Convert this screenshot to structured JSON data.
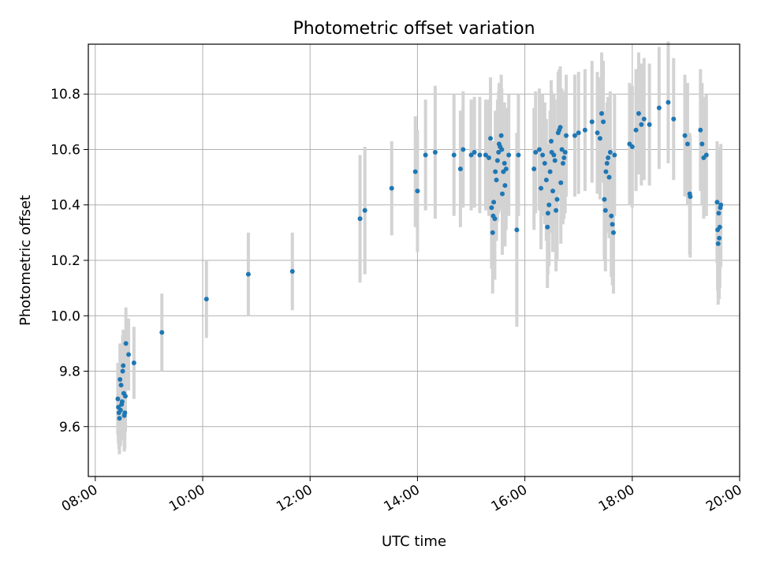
{
  "chart_data": {
    "type": "scatter",
    "title": "Photometric offset variation",
    "xlabel": "UTC time",
    "ylabel": "Photometric offset",
    "x_unit": "hours",
    "xlim": [
      7.87,
      20.0
    ],
    "ylim": [
      9.42,
      10.98
    ],
    "x_ticks": [
      {
        "value": 8,
        "label": "08:00"
      },
      {
        "value": 10,
        "label": "10:00"
      },
      {
        "value": 12,
        "label": "12:00"
      },
      {
        "value": 14,
        "label": "14:00"
      },
      {
        "value": 16,
        "label": "16:00"
      },
      {
        "value": 18,
        "label": "18:00"
      },
      {
        "value": 20,
        "label": "20:00"
      }
    ],
    "y_ticks": [
      {
        "value": 9.6,
        "label": "9.6"
      },
      {
        "value": 9.8,
        "label": "9.8"
      },
      {
        "value": 10.0,
        "label": "10.0"
      },
      {
        "value": 10.2,
        "label": "10.2"
      },
      {
        "value": 10.4,
        "label": "10.4"
      },
      {
        "value": 10.6,
        "label": "10.6"
      },
      {
        "value": 10.8,
        "label": "10.8"
      }
    ],
    "grid": true,
    "marker_color": "#1f77b4",
    "errorbar_color": "#d3d3d3",
    "series": [
      {
        "points": [
          {
            "x": 8.42,
            "y": 9.7,
            "err": 0.13
          },
          {
            "x": 8.43,
            "y": 9.67,
            "err": 0.13
          },
          {
            "x": 8.44,
            "y": 9.65,
            "err": 0.13
          },
          {
            "x": 8.45,
            "y": 9.63,
            "err": 0.13
          },
          {
            "x": 8.46,
            "y": 9.77,
            "err": 0.13
          },
          {
            "x": 8.47,
            "y": 9.66,
            "err": 0.13
          },
          {
            "x": 8.48,
            "y": 9.75,
            "err": 0.13
          },
          {
            "x": 8.49,
            "y": 9.68,
            "err": 0.13
          },
          {
            "x": 8.5,
            "y": 9.69,
            "err": 0.13
          },
          {
            "x": 8.51,
            "y": 9.8,
            "err": 0.13
          },
          {
            "x": 8.52,
            "y": 9.82,
            "err": 0.13
          },
          {
            "x": 8.53,
            "y": 9.72,
            "err": 0.13
          },
          {
            "x": 8.54,
            "y": 9.64,
            "err": 0.13
          },
          {
            "x": 8.55,
            "y": 9.65,
            "err": 0.13
          },
          {
            "x": 8.56,
            "y": 9.71,
            "err": 0.13
          },
          {
            "x": 8.57,
            "y": 9.9,
            "err": 0.13
          },
          {
            "x": 8.62,
            "y": 9.86,
            "err": 0.13
          },
          {
            "x": 8.72,
            "y": 9.83,
            "err": 0.13
          },
          {
            "x": 9.24,
            "y": 9.94,
            "err": 0.14
          },
          {
            "x": 10.07,
            "y": 10.06,
            "err": 0.14
          },
          {
            "x": 10.85,
            "y": 10.15,
            "err": 0.15
          },
          {
            "x": 11.67,
            "y": 10.16,
            "err": 0.14
          },
          {
            "x": 12.93,
            "y": 10.35,
            "err": 0.23
          },
          {
            "x": 13.02,
            "y": 10.38,
            "err": 0.23
          },
          {
            "x": 13.52,
            "y": 10.46,
            "err": 0.17
          },
          {
            "x": 13.96,
            "y": 10.52,
            "err": 0.2
          },
          {
            "x": 14.0,
            "y": 10.45,
            "err": 0.22
          },
          {
            "x": 14.15,
            "y": 10.58,
            "err": 0.2
          },
          {
            "x": 14.33,
            "y": 10.59,
            "err": 0.24
          },
          {
            "x": 14.68,
            "y": 10.58,
            "err": 0.22
          },
          {
            "x": 14.8,
            "y": 10.53,
            "err": 0.21
          },
          {
            "x": 14.85,
            "y": 10.6,
            "err": 0.21
          },
          {
            "x": 15.0,
            "y": 10.58,
            "err": 0.2
          },
          {
            "x": 15.06,
            "y": 10.59,
            "err": 0.2
          },
          {
            "x": 15.16,
            "y": 10.58,
            "err": 0.21
          },
          {
            "x": 15.27,
            "y": 10.58,
            "err": 0.2
          },
          {
            "x": 15.33,
            "y": 10.57,
            "err": 0.21
          },
          {
            "x": 15.36,
            "y": 10.64,
            "err": 0.22
          },
          {
            "x": 15.38,
            "y": 10.39,
            "err": 0.22
          },
          {
            "x": 15.4,
            "y": 10.3,
            "err": 0.22
          },
          {
            "x": 15.41,
            "y": 10.36,
            "err": 0.22
          },
          {
            "x": 15.42,
            "y": 10.41,
            "err": 0.22
          },
          {
            "x": 15.44,
            "y": 10.35,
            "err": 0.22
          },
          {
            "x": 15.45,
            "y": 10.52,
            "err": 0.22
          },
          {
            "x": 15.47,
            "y": 10.49,
            "err": 0.22
          },
          {
            "x": 15.49,
            "y": 10.56,
            "err": 0.22
          },
          {
            "x": 15.51,
            "y": 10.59,
            "err": 0.22
          },
          {
            "x": 15.52,
            "y": 10.62,
            "err": 0.22
          },
          {
            "x": 15.54,
            "y": 10.61,
            "err": 0.22
          },
          {
            "x": 15.56,
            "y": 10.65,
            "err": 0.22
          },
          {
            "x": 15.57,
            "y": 10.6,
            "err": 0.22
          },
          {
            "x": 15.58,
            "y": 10.44,
            "err": 0.22
          },
          {
            "x": 15.6,
            "y": 10.52,
            "err": 0.22
          },
          {
            "x": 15.62,
            "y": 10.55,
            "err": 0.22
          },
          {
            "x": 15.63,
            "y": 10.47,
            "err": 0.22
          },
          {
            "x": 15.65,
            "y": 10.53,
            "err": 0.22
          },
          {
            "x": 15.7,
            "y": 10.58,
            "err": 0.22
          },
          {
            "x": 15.85,
            "y": 10.31,
            "err": 0.35
          },
          {
            "x": 15.88,
            "y": 10.58,
            "err": 0.22
          },
          {
            "x": 16.17,
            "y": 10.53,
            "err": 0.22
          },
          {
            "x": 16.2,
            "y": 10.59,
            "err": 0.22
          },
          {
            "x": 16.27,
            "y": 10.6,
            "err": 0.22
          },
          {
            "x": 16.3,
            "y": 10.46,
            "err": 0.22
          },
          {
            "x": 16.33,
            "y": 10.58,
            "err": 0.22
          },
          {
            "x": 16.37,
            "y": 10.55,
            "err": 0.22
          },
          {
            "x": 16.4,
            "y": 10.49,
            "err": 0.22
          },
          {
            "x": 16.42,
            "y": 10.32,
            "err": 0.22
          },
          {
            "x": 16.43,
            "y": 10.37,
            "err": 0.22
          },
          {
            "x": 16.45,
            "y": 10.4,
            "err": 0.22
          },
          {
            "x": 16.47,
            "y": 10.52,
            "err": 0.22
          },
          {
            "x": 16.49,
            "y": 10.63,
            "err": 0.22
          },
          {
            "x": 16.5,
            "y": 10.59,
            "err": 0.22
          },
          {
            "x": 16.52,
            "y": 10.45,
            "err": 0.22
          },
          {
            "x": 16.54,
            "y": 10.58,
            "err": 0.22
          },
          {
            "x": 16.56,
            "y": 10.56,
            "err": 0.22
          },
          {
            "x": 16.58,
            "y": 10.38,
            "err": 0.22
          },
          {
            "x": 16.6,
            "y": 10.42,
            "err": 0.22
          },
          {
            "x": 16.62,
            "y": 10.66,
            "err": 0.22
          },
          {
            "x": 16.64,
            "y": 10.67,
            "err": 0.22
          },
          {
            "x": 16.66,
            "y": 10.68,
            "err": 0.22
          },
          {
            "x": 16.67,
            "y": 10.48,
            "err": 0.22
          },
          {
            "x": 16.69,
            "y": 10.6,
            "err": 0.22
          },
          {
            "x": 16.71,
            "y": 10.55,
            "err": 0.22
          },
          {
            "x": 16.73,
            "y": 10.57,
            "err": 0.22
          },
          {
            "x": 16.75,
            "y": 10.59,
            "err": 0.22
          },
          {
            "x": 16.77,
            "y": 10.65,
            "err": 0.22
          },
          {
            "x": 16.93,
            "y": 10.65,
            "err": 0.22
          },
          {
            "x": 17.0,
            "y": 10.66,
            "err": 0.22
          },
          {
            "x": 17.12,
            "y": 10.67,
            "err": 0.22
          },
          {
            "x": 17.25,
            "y": 10.7,
            "err": 0.22
          },
          {
            "x": 17.35,
            "y": 10.66,
            "err": 0.22
          },
          {
            "x": 17.4,
            "y": 10.64,
            "err": 0.22
          },
          {
            "x": 17.43,
            "y": 10.73,
            "err": 0.22
          },
          {
            "x": 17.46,
            "y": 10.7,
            "err": 0.22
          },
          {
            "x": 17.48,
            "y": 10.42,
            "err": 0.22
          },
          {
            "x": 17.5,
            "y": 10.38,
            "err": 0.22
          },
          {
            "x": 17.51,
            "y": 10.52,
            "err": 0.22
          },
          {
            "x": 17.53,
            "y": 10.55,
            "err": 0.22
          },
          {
            "x": 17.55,
            "y": 10.57,
            "err": 0.22
          },
          {
            "x": 17.57,
            "y": 10.5,
            "err": 0.22
          },
          {
            "x": 17.59,
            "y": 10.59,
            "err": 0.22
          },
          {
            "x": 17.61,
            "y": 10.36,
            "err": 0.22
          },
          {
            "x": 17.63,
            "y": 10.33,
            "err": 0.22
          },
          {
            "x": 17.65,
            "y": 10.3,
            "err": 0.22
          },
          {
            "x": 17.67,
            "y": 10.58,
            "err": 0.22
          },
          {
            "x": 17.95,
            "y": 10.62,
            "err": 0.22
          },
          {
            "x": 18.0,
            "y": 10.61,
            "err": 0.22
          },
          {
            "x": 18.07,
            "y": 10.67,
            "err": 0.22
          },
          {
            "x": 18.12,
            "y": 10.73,
            "err": 0.22
          },
          {
            "x": 18.17,
            "y": 10.69,
            "err": 0.22
          },
          {
            "x": 18.22,
            "y": 10.71,
            "err": 0.22
          },
          {
            "x": 18.32,
            "y": 10.69,
            "err": 0.22
          },
          {
            "x": 18.5,
            "y": 10.75,
            "err": 0.22
          },
          {
            "x": 18.67,
            "y": 10.77,
            "err": 0.22
          },
          {
            "x": 18.77,
            "y": 10.71,
            "err": 0.22
          },
          {
            "x": 18.98,
            "y": 10.65,
            "err": 0.22
          },
          {
            "x": 19.03,
            "y": 10.62,
            "err": 0.22
          },
          {
            "x": 19.07,
            "y": 10.44,
            "err": 0.22
          },
          {
            "x": 19.08,
            "y": 10.43,
            "err": 0.22
          },
          {
            "x": 19.27,
            "y": 10.67,
            "err": 0.22
          },
          {
            "x": 19.3,
            "y": 10.62,
            "err": 0.22
          },
          {
            "x": 19.33,
            "y": 10.57,
            "err": 0.22
          },
          {
            "x": 19.38,
            "y": 10.58,
            "err": 0.22
          },
          {
            "x": 19.58,
            "y": 10.41,
            "err": 0.22
          },
          {
            "x": 19.59,
            "y": 10.31,
            "err": 0.22
          },
          {
            "x": 19.6,
            "y": 10.26,
            "err": 0.22
          },
          {
            "x": 19.61,
            "y": 10.37,
            "err": 0.22
          },
          {
            "x": 19.62,
            "y": 10.28,
            "err": 0.22
          },
          {
            "x": 19.63,
            "y": 10.32,
            "err": 0.22
          },
          {
            "x": 19.64,
            "y": 10.39,
            "err": 0.22
          },
          {
            "x": 19.65,
            "y": 10.4,
            "err": 0.22
          }
        ]
      }
    ]
  }
}
